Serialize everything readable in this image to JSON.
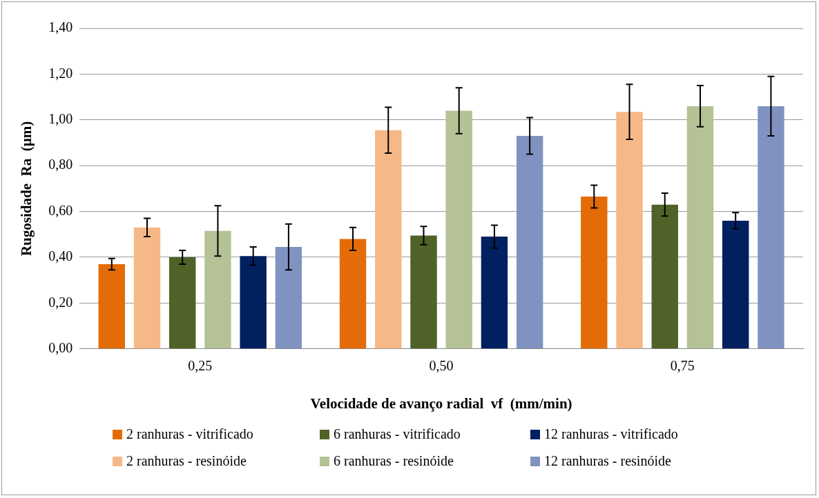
{
  "chart_data": {
    "type": "bar",
    "xlabel": "Velocidade de avanço radial  vf  (mm/min)",
    "ylabel": "Rugosidade  Ra  (µm)",
    "categories": [
      "0,25",
      "0,50",
      "0,75"
    ],
    "series": [
      {
        "name": "2 ranhuras - vitrificado",
        "color": "#e36c09",
        "values": [
          0.37,
          0.48,
          0.665
        ],
        "errors": [
          0.025,
          0.05,
          0.05
        ]
      },
      {
        "name": "2 ranhuras - resinóide",
        "color": "#f6b887",
        "values": [
          0.53,
          0.955,
          1.035
        ],
        "errors": [
          0.04,
          0.1,
          0.12
        ]
      },
      {
        "name": "6 ranhuras - vitrificado",
        "color": "#4f6228",
        "values": [
          0.4,
          0.495,
          0.63
        ],
        "errors": [
          0.03,
          0.04,
          0.05
        ]
      },
      {
        "name": "6 ranhuras - resinóide",
        "color": "#b4c296",
        "values": [
          0.515,
          1.04,
          1.06
        ],
        "errors": [
          0.11,
          0.1,
          0.09
        ]
      },
      {
        "name": "12 ranhuras - vitrificado",
        "color": "#002060",
        "values": [
          0.405,
          0.49,
          0.56
        ],
        "errors": [
          0.04,
          0.05,
          0.035
        ]
      },
      {
        "name": "12 ranhuras - resinóide",
        "color": "#8093c0",
        "values": [
          0.445,
          0.93,
          1.06
        ],
        "errors": [
          0.1,
          0.08,
          0.13
        ]
      }
    ],
    "ylim": [
      0,
      1.4
    ],
    "yticks": [
      {
        "value": 0,
        "label": "0,00"
      },
      {
        "value": 0.2,
        "label": "0,20"
      },
      {
        "value": 0.4,
        "label": "0,40"
      },
      {
        "value": 0.6,
        "label": "0,60"
      },
      {
        "value": 0.8,
        "label": "0,80"
      },
      {
        "value": 1.0,
        "label": "1,00"
      },
      {
        "value": 1.2,
        "label": "1,20"
      },
      {
        "value": 1.4,
        "label": "1,40"
      }
    ],
    "grid": "y",
    "legend": "bottom"
  }
}
